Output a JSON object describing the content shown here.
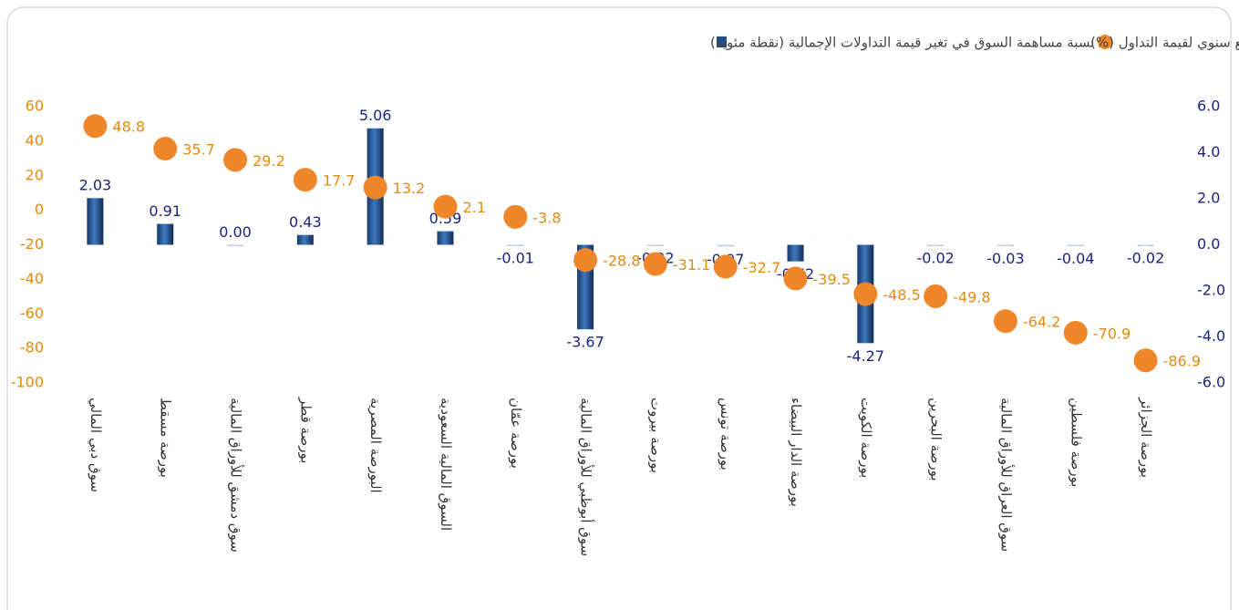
{
  "chart_data": {
    "type": "bar_dot",
    "categories": [
      "سوق دبي المالي",
      "بورصة مسقط",
      "سوق دمشق للأوراق المالية",
      "بورصة قطر",
      "البورصة المصرية",
      "السوق المالية السعودية",
      "بورصة عمّان",
      "سوق أبوظبي للأوراق المالية",
      "بورصة بيروت",
      "بورصة تونس",
      "بورصة الدار البيضاء",
      "بورصة الكويت",
      "بورصة البحرين",
      "سوق العراق للأوراق المالية",
      "بورصة فلسطين",
      "بورصة الجزائر"
    ],
    "series": [
      {
        "name": "نسبة التغير الربع سنوي لقيمة التداول (%)",
        "color": "#f0862a",
        "axis": "y",
        "values": [
          48.8,
          35.7,
          29.2,
          17.7,
          13.2,
          2.1,
          -3.8,
          -28.8,
          -31.1,
          -32.7,
          -39.5,
          -48.5,
          -49.8,
          -64.2,
          -70.9,
          -86.9
        ]
      },
      {
        "name": "نسبة مساهمة السوق في تغير قيمة التداولات الإجمالية (نقطة مئوية)",
        "color": "#1f4e8c",
        "axis": "y2",
        "values": [
          2.03,
          0.91,
          0.0,
          0.43,
          5.06,
          0.59,
          -0.01,
          -3.67,
          -0.02,
          -0.07,
          -0.72,
          -4.27,
          -0.02,
          -0.03,
          -0.04,
          -0.02
        ],
        "value_labels": [
          "2.03",
          "0.91",
          "0.00",
          "0.43",
          "5.06",
          "0.59",
          "-0.01",
          "-3.67",
          "-0.02",
          "-0.07",
          "-0.72",
          "-4.27",
          "-0.02",
          "-0.03",
          "-0.04",
          "-0.02"
        ]
      }
    ],
    "ylim": [
      -100,
      60
    ],
    "yticks": [
      -100,
      -80,
      -60,
      -40,
      -20,
      0,
      20,
      40,
      60
    ],
    "y2lim": [
      -6,
      6
    ],
    "y2ticks": [
      {
        "value": -6,
        "label": "-6.0"
      },
      {
        "value": -4,
        "label": "-4.0"
      },
      {
        "value": -2,
        "label": "-2.0"
      },
      {
        "value": 0,
        "label": "0.0"
      },
      {
        "value": 2,
        "label": "2.0"
      },
      {
        "value": 4,
        "label": "4.0"
      },
      {
        "value": 6,
        "label": "6.0"
      }
    ],
    "legend": "top"
  }
}
